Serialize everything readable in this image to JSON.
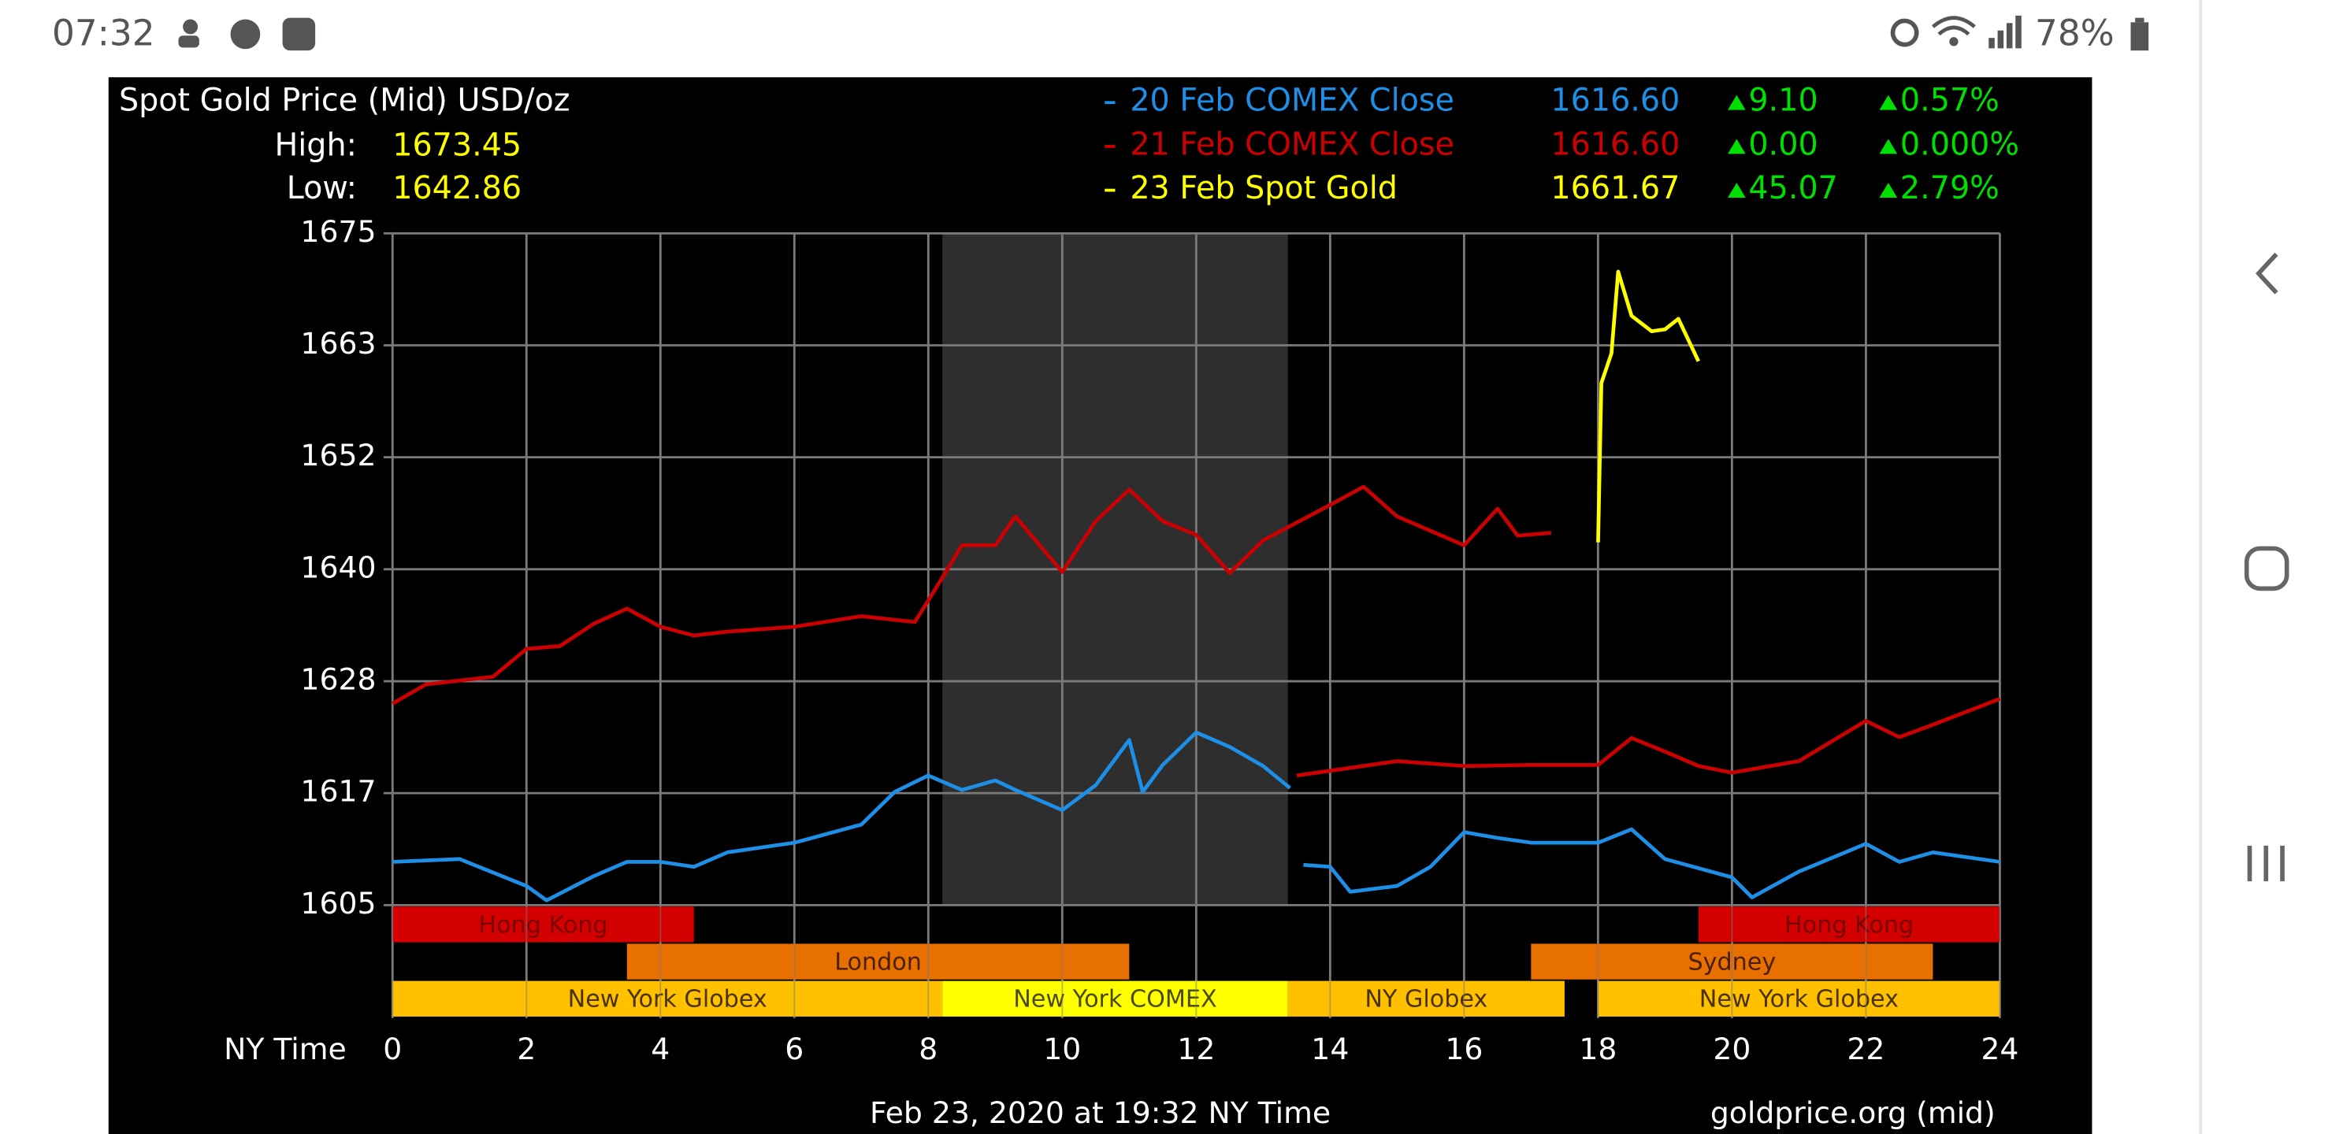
{
  "status_bar": {
    "time": "07:32",
    "battery": "78%"
  },
  "chart_data": {
    "type": "line",
    "title": "Spot Gold Price (Mid) USD/oz",
    "high_label": "High:",
    "high": "1673.45",
    "low_label": "Low:",
    "low": "1642.86",
    "x_label": "NY Time",
    "footer": "Feb 23, 2020 at 19:32 NY Time",
    "source": "goldprice.org (mid)",
    "xlim": [
      0,
      24
    ],
    "xticks": [
      0,
      2,
      4,
      6,
      8,
      10,
      12,
      14,
      16,
      18,
      20,
      22,
      24
    ],
    "ylim": [
      1605,
      1675
    ],
    "yticks": [
      1605,
      {
        "value": 1616.67,
        "label": "1617"
      },
      {
        "value": 1628.33,
        "label": "1628"
      },
      1640,
      {
        "value": 1651.67,
        "label": "1652"
      },
      {
        "value": 1663.33,
        "label": "1663"
      },
      1675
    ],
    "grid": true,
    "shaded": {
      "start": 8.21,
      "end": 13.37
    },
    "series": [
      {
        "name": "20 Feb COMEX Close",
        "color": "#1e8fe6",
        "close": "1616.60",
        "change": "9.10",
        "change_pct": "0.57%",
        "x": [
          0,
          1,
          2,
          2.3,
          3,
          3.5,
          4,
          4.5,
          5,
          6,
          7,
          7.5,
          8,
          8.5,
          9,
          9.3,
          10,
          10.5,
          11,
          11.2,
          11.5,
          12,
          12.5,
          13,
          13.4,
          null,
          13.6,
          14,
          14.3,
          15,
          15.5,
          16,
          16.5,
          17,
          18,
          18.5,
          19,
          20,
          20.3,
          21,
          22,
          22.5,
          23,
          24
        ],
        "values": [
          1609.5,
          1609.8,
          1607,
          1605.5,
          1608,
          1609.5,
          1609.5,
          1609,
          1610.5,
          1611.5,
          1613.4,
          1616.8,
          1618.5,
          1617,
          1618,
          1617,
          1614.9,
          1617.5,
          1622.2,
          1616.8,
          1619.6,
          1623,
          1621.5,
          1619.5,
          1617.2,
          null,
          1609.2,
          1609,
          1606.4,
          1607,
          1609,
          1612.6,
          1612,
          1611.5,
          1611.5,
          1612.9,
          1609.8,
          1607.9,
          1605.8,
          1608.5,
          1611.4,
          1609.5,
          1610.5,
          1609.5
        ]
      },
      {
        "name": "21 Feb COMEX Close",
        "color": "#cc0000",
        "close": "1616.60",
        "change": "0.00",
        "change_pct": "0.000%",
        "x": [
          0,
          0.5,
          1.5,
          2,
          2.5,
          3,
          3.5,
          4,
          4.5,
          5,
          6,
          7,
          7.8,
          8.2,
          8.5,
          9,
          9.3,
          10,
          10.5,
          11,
          11.5,
          12,
          12.5,
          13,
          14,
          14.5,
          15,
          16,
          16.5,
          16.8,
          17.3,
          null,
          13.5,
          14,
          15,
          16,
          17,
          18,
          18.5,
          19,
          19.5,
          20,
          21,
          22,
          22.5,
          23,
          24
        ],
        "values": [
          1626,
          1628,
          1628.8,
          1631.7,
          1632,
          1634.3,
          1635.9,
          1634,
          1633.1,
          1633.5,
          1634,
          1635.1,
          1634.5,
          1639,
          1642.5,
          1642.5,
          1645.5,
          1639.7,
          1645,
          1648.3,
          1645,
          1643.6,
          1639.6,
          1643,
          1646.7,
          1648.6,
          1645.5,
          1642.5,
          1646.3,
          1643.5,
          1643.8,
          null,
          1618.5,
          1619,
          1620,
          1619.5,
          1619.6,
          1619.6,
          1622.4,
          1621,
          1619.5,
          1618.8,
          1620,
          1624.2,
          1622.5,
          1623.8,
          1626.5
        ]
      },
      {
        "name": "23 Feb Spot Gold",
        "color": "#ffff00",
        "close": "1661.67",
        "change": "45.07",
        "change_pct": "2.79%",
        "x": [
          18,
          18.05,
          18.2,
          18.3,
          18.5,
          18.8,
          19,
          19.2,
          19.5
        ],
        "values": [
          1642.8,
          1659.4,
          1662.5,
          1671,
          1666.4,
          1664.8,
          1665,
          1666.1,
          1661.67
        ]
      }
    ],
    "sessions": [
      {
        "name": "Hong Kong",
        "start": 0,
        "end": 4.5,
        "row": 0,
        "color": "#d40000",
        "text_color": "#7a0000"
      },
      {
        "name": "Hong Kong",
        "start": 19.5,
        "end": 24,
        "row": 0,
        "color": "#d40000",
        "text_color": "#7a0000"
      },
      {
        "name": "London",
        "start": 3.5,
        "end": 11,
        "row": 1,
        "color": "#e87000",
        "text_color": "#4a2000"
      },
      {
        "name": "Sydney",
        "start": 17,
        "end": 23,
        "row": 1,
        "color": "#e87000",
        "text_color": "#4a2000"
      },
      {
        "name": "New York Globex",
        "start": 0,
        "end": 8.21,
        "row": 2,
        "color": "#ffc000",
        "text_color": "#4a3300"
      },
      {
        "name": "New York COMEX",
        "start": 8.21,
        "end": 13.37,
        "row": 2,
        "color": "#ffff00",
        "text_color": "#4a4a00"
      },
      {
        "name": "NY Globex",
        "start": 13.37,
        "end": 17.5,
        "row": 2,
        "color": "#ffc000",
        "text_color": "#4a3300"
      },
      {
        "name": "New York Globex",
        "start": 18,
        "end": 24,
        "row": 2,
        "color": "#ffc000",
        "text_color": "#4a3300"
      }
    ]
  }
}
